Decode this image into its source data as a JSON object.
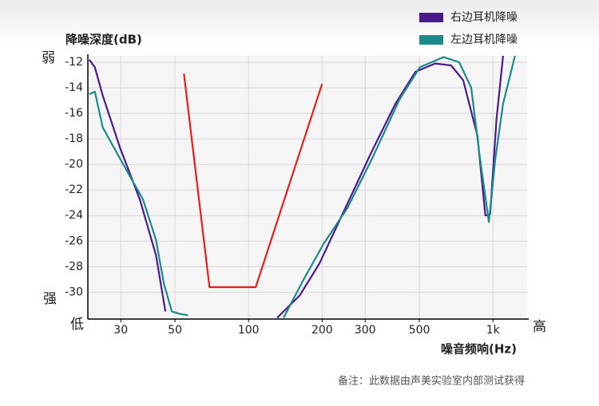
{
  "chart_data": {
    "type": "line",
    "y_label": "降噪深度(dB)",
    "x_label": "噪音频响(Hz)",
    "annotations": {
      "weak": "弱",
      "strong": "强",
      "low": "低",
      "high": "高"
    },
    "note": "备注：此数据由声美实验室内部测试获得",
    "log_x": true,
    "grid": true,
    "legend": "top-right",
    "xlim": [
      22,
      1380
    ],
    "ylim": [
      -32.1,
      -11.5
    ],
    "xticks": [
      30,
      50,
      100,
      200,
      300,
      500,
      {
        "value": 1000,
        "label": "1k"
      }
    ],
    "yticks": [
      -12,
      -14,
      -16,
      -18,
      -20,
      -22,
      -24,
      -26,
      -28,
      -30
    ],
    "series": [
      {
        "name": "右边耳机降噪",
        "color": "#4b1a8c",
        "x": [
          22.3,
          23.5,
          25.3,
          29.8,
          35.9,
          41.8,
          45.7,
          null,
          131,
          162,
          195,
          245,
          319,
          399,
          482,
          580,
          674,
          755,
          864,
          931,
          974,
          1034,
          1100
        ],
        "values": [
          -11.8,
          -12.4,
          -14.6,
          -18.7,
          -22.75,
          -27.1,
          -31.5,
          null,
          -32,
          -30.25,
          -27.75,
          -23.7,
          -19,
          -15.25,
          -12.75,
          -12.1,
          -12.25,
          -13.4,
          -17.75,
          -24,
          -23.9,
          -16.5,
          -11.5
        ]
      },
      {
        "name": "左边耳机降噪",
        "color": "#1a8a8a",
        "x": [
          22.3,
          23.5,
          25.3,
          27.6,
          32,
          37,
          41.8,
          45,
          48.5,
          52.4,
          56.5,
          null,
          139,
          168,
          203,
          254,
          319,
          415,
          502,
          627,
          728,
          815,
          878,
          962,
          1022,
          1100,
          1231
        ],
        "values": [
          -14.5,
          -14.3,
          -17.1,
          -18.4,
          -20.6,
          -22.75,
          -25.9,
          -29.3,
          -31.5,
          -31.7,
          -31.8,
          null,
          -32,
          -29,
          -26.2,
          -23.4,
          -19.6,
          -14.9,
          -12.4,
          -11.6,
          -12,
          -14,
          -19,
          -24.5,
          -19.6,
          -15.25,
          -11.5
        ]
      },
      {
        "color": "#e02020",
        "x": [
          54.4,
          69.2,
          107,
          200
        ],
        "values": [
          -12.9,
          -29.6,
          -29.6,
          -13.7
        ]
      }
    ]
  }
}
